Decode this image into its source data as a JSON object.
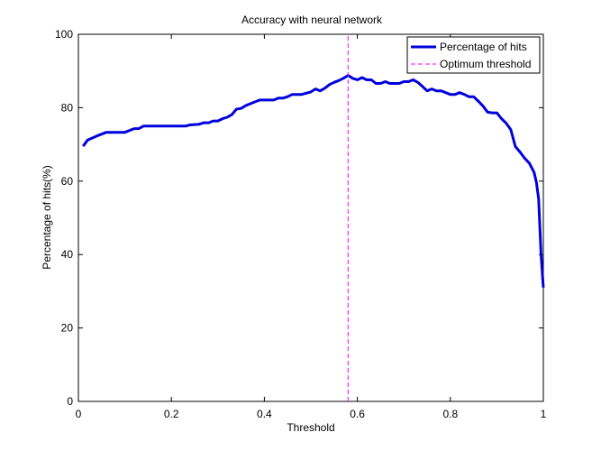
{
  "chart_data": {
    "type": "line",
    "title": "Accuracy with neural network",
    "xlabel": "Threshold",
    "ylabel": "Percentage of hits(%)",
    "xlim": [
      0,
      1
    ],
    "ylim": [
      0,
      100
    ],
    "xticks": [
      0,
      0.2,
      0.4,
      0.6,
      0.8,
      1
    ],
    "xtick_labels": [
      "0",
      "0.2",
      "0.4",
      "0.6",
      "0.8",
      "1"
    ],
    "yticks": [
      0,
      20,
      40,
      60,
      80,
      100
    ],
    "ytick_labels": [
      "0",
      "20",
      "40",
      "60",
      "80",
      "100"
    ],
    "grid": false,
    "legend_position": "top-right",
    "series": [
      {
        "name": "Percentage of hits",
        "color": "#0000dd",
        "style": "solid",
        "x": [
          0.01,
          0.02,
          0.04,
          0.06,
          0.08,
          0.1,
          0.12,
          0.13,
          0.14,
          0.16,
          0.18,
          0.2,
          0.22,
          0.23,
          0.24,
          0.26,
          0.27,
          0.28,
          0.29,
          0.3,
          0.31,
          0.32,
          0.33,
          0.34,
          0.35,
          0.36,
          0.38,
          0.39,
          0.4,
          0.42,
          0.43,
          0.44,
          0.45,
          0.46,
          0.47,
          0.48,
          0.5,
          0.51,
          0.52,
          0.53,
          0.54,
          0.55,
          0.56,
          0.57,
          0.58,
          0.59,
          0.6,
          0.61,
          0.62,
          0.63,
          0.64,
          0.65,
          0.66,
          0.67,
          0.68,
          0.69,
          0.7,
          0.71,
          0.72,
          0.73,
          0.74,
          0.75,
          0.76,
          0.77,
          0.78,
          0.79,
          0.8,
          0.81,
          0.82,
          0.83,
          0.84,
          0.85,
          0.86,
          0.87,
          0.88,
          0.89,
          0.9,
          0.91,
          0.92,
          0.93,
          0.94,
          0.95,
          0.96,
          0.97,
          0.98,
          0.985,
          0.99,
          0.995,
          1.0
        ],
        "y": [
          69.5,
          71.2,
          72.3,
          73.3,
          73.3,
          73.3,
          74.3,
          74.3,
          75.0,
          75.0,
          75.0,
          75.0,
          75.0,
          75.0,
          75.3,
          75.5,
          75.9,
          75.9,
          76.4,
          76.4,
          77.0,
          77.4,
          78.1,
          79.6,
          79.8,
          80.6,
          81.6,
          82.1,
          82.1,
          82.1,
          82.6,
          82.6,
          83.0,
          83.6,
          83.6,
          83.6,
          84.3,
          85.1,
          84.6,
          85.3,
          86.3,
          86.9,
          87.4,
          88.0,
          88.8,
          88.0,
          87.6,
          88.2,
          87.6,
          87.6,
          86.6,
          86.6,
          87.1,
          86.6,
          86.6,
          86.6,
          87.1,
          87.1,
          87.6,
          86.9,
          85.8,
          84.6,
          85.1,
          84.6,
          84.6,
          84.1,
          83.6,
          83.6,
          84.1,
          83.6,
          83.0,
          83.0,
          81.8,
          80.5,
          78.8,
          78.6,
          78.6,
          77.0,
          75.8,
          74.0,
          69.4,
          67.9,
          66.2,
          64.9,
          62.4,
          59.7,
          55.1,
          40.4,
          31.0
        ]
      },
      {
        "name": "Optimum threshold",
        "color": "#ff00ff",
        "style": "dashed",
        "x": [
          0.58,
          0.58
        ],
        "y": [
          0,
          100
        ]
      }
    ]
  }
}
